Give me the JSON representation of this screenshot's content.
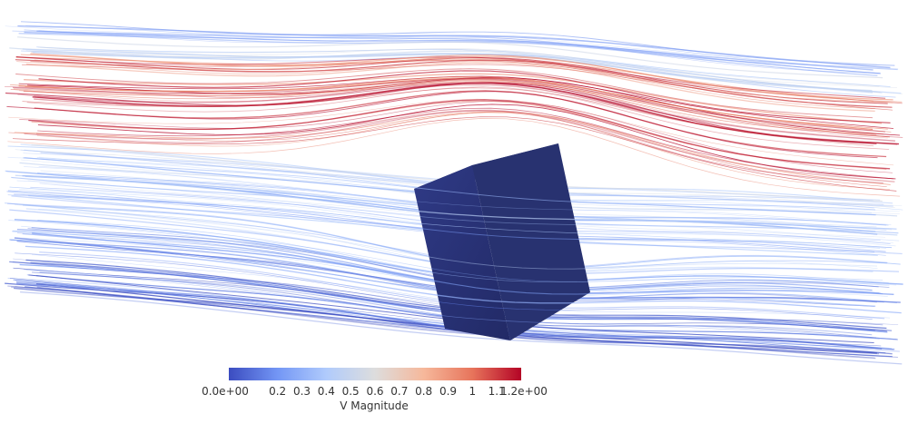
{
  "legend": {
    "title": "V Magnitude",
    "ticks": [
      {
        "value": 0.0,
        "label": "0.0e+00"
      },
      {
        "value": 0.2,
        "label": "0.2"
      },
      {
        "value": 0.3,
        "label": "0.3"
      },
      {
        "value": 0.4,
        "label": "0.4"
      },
      {
        "value": 0.5,
        "label": "0.5"
      },
      {
        "value": 0.6,
        "label": "0.6"
      },
      {
        "value": 0.7,
        "label": "0.7"
      },
      {
        "value": 0.8,
        "label": "0.8"
      },
      {
        "value": 0.9,
        "label": "0.9"
      },
      {
        "value": 1.0,
        "label": "1"
      },
      {
        "value": 1.1,
        "label": "1.1"
      },
      {
        "value": 1.2,
        "label": "1.2e+00"
      }
    ],
    "range": [
      0.0,
      1.2
    ],
    "colormap": [
      "#3b4cc0",
      "#7396f5",
      "#b0cbfc",
      "#dddddd",
      "#f6b89b",
      "#e7745b",
      "#b40426"
    ]
  },
  "scene": {
    "obstacle_color": "#262f6b"
  }
}
